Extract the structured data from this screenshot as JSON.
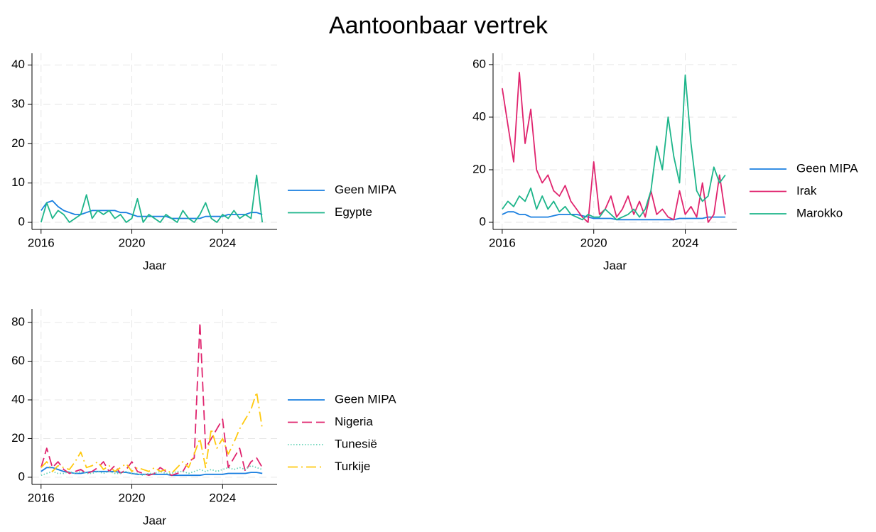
{
  "title": "Aantoonbaar vertrek",
  "chart_data": [
    {
      "type": "line",
      "xlabel": "Jaar",
      "x": [
        2016,
        2016.25,
        2016.5,
        2016.75,
        2017,
        2017.25,
        2017.5,
        2017.75,
        2018,
        2018.25,
        2018.5,
        2018.75,
        2019,
        2019.25,
        2019.5,
        2019.75,
        2020,
        2020.25,
        2020.5,
        2020.75,
        2021,
        2021.25,
        2021.5,
        2021.75,
        2022,
        2022.25,
        2022.5,
        2022.75,
        2023,
        2023.25,
        2023.5,
        2023.75,
        2024,
        2024.25,
        2024.5,
        2024.75,
        2025,
        2025.25,
        2025.5,
        2025.75
      ],
      "xlim": [
        2015.6,
        2026.4
      ],
      "xticks": [
        2016,
        2020,
        2024
      ],
      "ylim": [
        -1.8,
        43
      ],
      "yticks": [
        0,
        10,
        20,
        30,
        40
      ],
      "grid": true,
      "series": [
        {
          "name": "Geen MIPA",
          "color": "#1a7fe0",
          "values": [
            3,
            5,
            5.5,
            4,
            3,
            2.5,
            2,
            2,
            2.5,
            3,
            3,
            3,
            3,
            3,
            2.5,
            2.5,
            2,
            1.5,
            1.5,
            1.5,
            1.5,
            1.5,
            1.5,
            1,
            1,
            1,
            1,
            1,
            1,
            1.5,
            1.5,
            1.5,
            1.5,
            2,
            2,
            2,
            2,
            2.5,
            2.5,
            2
          ]
        },
        {
          "name": "Egypte",
          "color": "#1db58a",
          "values": [
            0,
            5,
            1,
            3,
            2,
            0,
            1,
            2,
            7,
            1,
            3,
            2,
            3,
            1,
            2,
            0,
            1,
            6,
            0,
            2,
            1,
            0,
            2,
            1,
            0,
            3,
            1,
            0,
            2,
            5,
            1,
            0,
            2,
            1,
            3,
            1,
            2,
            1,
            12,
            0
          ]
        }
      ]
    },
    {
      "type": "line",
      "xlabel": "Jaar",
      "x": [
        2016,
        2016.25,
        2016.5,
        2016.75,
        2017,
        2017.25,
        2017.5,
        2017.75,
        2018,
        2018.25,
        2018.5,
        2018.75,
        2019,
        2019.25,
        2019.5,
        2019.75,
        2020,
        2020.25,
        2020.5,
        2020.75,
        2021,
        2021.25,
        2021.5,
        2021.75,
        2022,
        2022.25,
        2022.5,
        2022.75,
        2023,
        2023.25,
        2023.5,
        2023.75,
        2024,
        2024.25,
        2024.5,
        2024.75,
        2025,
        2025.25,
        2025.5,
        2025.75
      ],
      "xlim": [
        2015.6,
        2026.25
      ],
      "xticks": [
        2016,
        2020,
        2024
      ],
      "ylim": [
        -2.7,
        64.3
      ],
      "yticks": [
        0,
        20,
        40,
        60
      ],
      "grid": true,
      "series": [
        {
          "name": "Geen MIPA",
          "color": "#1a7fe0",
          "values": [
            3,
            4,
            4,
            3,
            3,
            2,
            2,
            2,
            2,
            2.5,
            3,
            3,
            3,
            3,
            2.5,
            2,
            1.5,
            1.5,
            1.5,
            1.5,
            1,
            1,
            1,
            1,
            1,
            1,
            1,
            1,
            1,
            1,
            1,
            1.5,
            1.5,
            1.5,
            1.5,
            1.5,
            2,
            2,
            2,
            2
          ]
        },
        {
          "name": "Irak",
          "color": "#e0246e",
          "values": [
            51,
            37,
            23,
            57,
            30,
            43,
            20,
            15,
            18,
            12,
            10,
            14,
            8,
            5,
            2,
            0,
            23,
            3,
            5,
            10,
            2,
            5,
            10,
            3,
            8,
            2,
            12,
            3,
            5,
            2,
            1,
            12,
            3,
            6,
            2,
            15,
            0,
            3,
            18,
            3
          ]
        },
        {
          "name": "Marokko",
          "color": "#1db58a",
          "values": [
            5,
            8,
            6,
            10,
            8,
            13,
            5,
            10,
            5,
            8,
            4,
            6,
            3,
            2,
            1,
            3,
            2,
            2,
            5,
            3,
            1,
            2,
            3,
            5,
            2,
            5,
            12,
            29,
            20,
            40,
            25,
            15,
            56,
            30,
            12,
            8,
            10,
            21,
            15,
            18
          ]
        }
      ]
    },
    {
      "type": "line",
      "xlabel": "Jaar",
      "x": [
        2016,
        2016.25,
        2016.5,
        2016.75,
        2017,
        2017.25,
        2017.5,
        2017.75,
        2018,
        2018.25,
        2018.5,
        2018.75,
        2019,
        2019.25,
        2019.5,
        2019.75,
        2020,
        2020.25,
        2020.5,
        2020.75,
        2021,
        2021.25,
        2021.5,
        2021.75,
        2022,
        2022.25,
        2022.5,
        2022.75,
        2023,
        2023.25,
        2023.5,
        2023.75,
        2024,
        2024.25,
        2024.5,
        2024.75,
        2025,
        2025.25,
        2025.5,
        2025.75
      ],
      "xlim": [
        2015.6,
        2026.4
      ],
      "xticks": [
        2016,
        2020,
        2024
      ],
      "ylim": [
        -3.7,
        87
      ],
      "yticks": [
        0,
        20,
        40,
        60,
        80
      ],
      "grid": true,
      "series": [
        {
          "name": "Geen MIPA",
          "color": "#1a7fe0",
          "values": [
            3,
            5,
            5,
            4,
            3,
            2.5,
            2,
            2,
            2.5,
            3,
            3,
            3,
            3,
            3,
            2.5,
            2.5,
            2,
            1.5,
            1.5,
            1.5,
            1.5,
            1.5,
            1.5,
            1,
            1,
            1,
            1,
            1,
            1,
            1.5,
            1.5,
            1.5,
            1.5,
            2,
            2,
            2,
            2,
            2.5,
            2.5,
            2
          ]
        },
        {
          "name": "Nigeria",
          "color": "#e0246e",
          "style": "dashed",
          "values": [
            5,
            15,
            5,
            8,
            4,
            2,
            3,
            4,
            2,
            3,
            5,
            8,
            3,
            6,
            2,
            4,
            8,
            3,
            2,
            1,
            2,
            5,
            3,
            1,
            2,
            3,
            8,
            10,
            80,
            15,
            20,
            25,
            30,
            5,
            10,
            15,
            3,
            8,
            10,
            5
          ]
        },
        {
          "name": "Tunesië",
          "color": "#66d4b8",
          "style": "dotted",
          "values": [
            1,
            2,
            3,
            2,
            2,
            3,
            2,
            3,
            2,
            2,
            3,
            2,
            3,
            2,
            2,
            3,
            2,
            2,
            1,
            2,
            2,
            3,
            2,
            2,
            3,
            3,
            2,
            3,
            4,
            3,
            4,
            3,
            4,
            5,
            4,
            5,
            4,
            6,
            5,
            4
          ]
        },
        {
          "name": "Turkije",
          "color": "#ffc90e",
          "style": "dashdot",
          "values": [
            5,
            8,
            3,
            6,
            5,
            4,
            8,
            13,
            5,
            6,
            8,
            4,
            6,
            3,
            5,
            7,
            3,
            5,
            4,
            3,
            5,
            3,
            4,
            2,
            5,
            8,
            5,
            12,
            20,
            5,
            25,
            15,
            20,
            12,
            18,
            25,
            30,
            35,
            44,
            25
          ]
        }
      ]
    }
  ]
}
